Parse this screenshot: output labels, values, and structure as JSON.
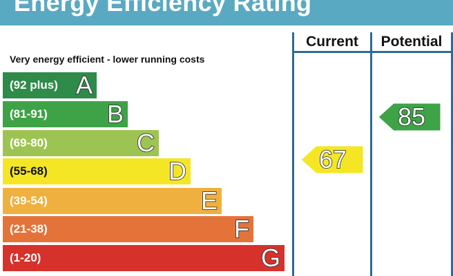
{
  "title": "Energy Efficiency Rating",
  "top_label": "Very energy efficient - lower running costs",
  "columns": {
    "current": "Current",
    "potential": "Potential"
  },
  "chart_data": {
    "type": "bar",
    "bands": [
      {
        "range": "(92 plus)",
        "letter": "A",
        "color": "#2e8b4a"
      },
      {
        "range": "(81-91)",
        "letter": "B",
        "color": "#3ea347"
      },
      {
        "range": "(69-80)",
        "letter": "C",
        "color": "#9dc452"
      },
      {
        "range": "(55-68)",
        "letter": "D",
        "color": "#f5e625"
      },
      {
        "range": "(39-54)",
        "letter": "E",
        "color": "#f0b03f"
      },
      {
        "range": "(21-38)",
        "letter": "F",
        "color": "#e4733a"
      },
      {
        "range": "(1-20)",
        "letter": "G",
        "color": "#d7312c"
      }
    ],
    "current": {
      "value": "67",
      "band": "D",
      "color": "#f5e625"
    },
    "potential": {
      "value": "85",
      "band": "B",
      "color": "#3ea347"
    }
  }
}
